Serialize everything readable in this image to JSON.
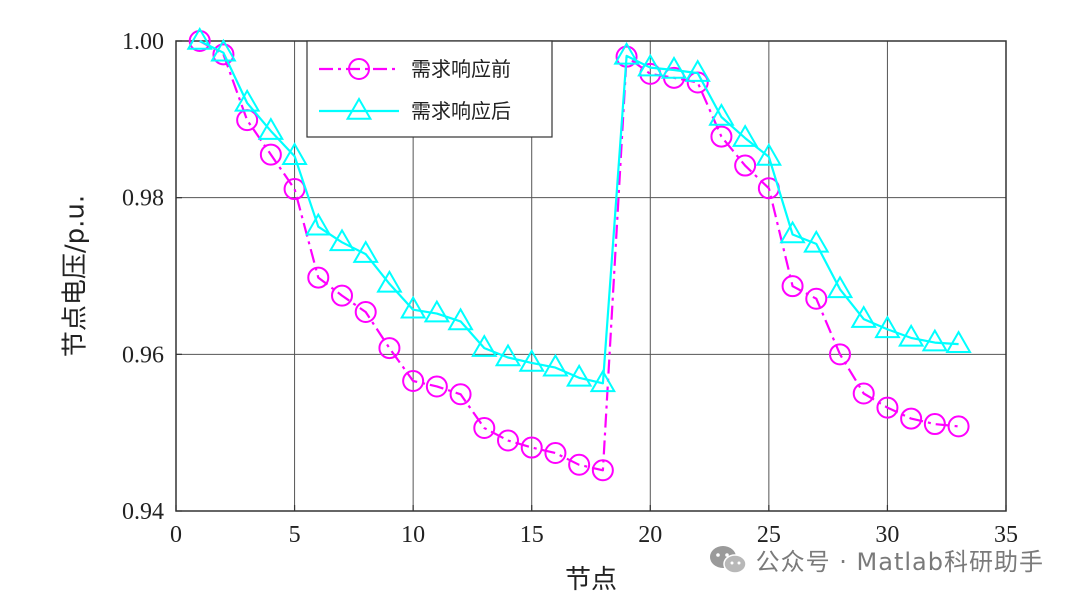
{
  "chart_data": {
    "type": "line",
    "xlabel": "节点",
    "ylabel": "节点电压/p.u.",
    "xlim": [
      0,
      35
    ],
    "ylim": [
      0.94,
      1.0
    ],
    "xticks": [
      0,
      5,
      10,
      15,
      20,
      25,
      30,
      35
    ],
    "yticks": [
      0.94,
      0.96,
      0.98,
      1.0
    ],
    "ytick_labels": [
      "0.94",
      "0.96",
      "0.98",
      "1.00"
    ],
    "grid": true,
    "legend_position": "top-left",
    "x": [
      1,
      2,
      3,
      4,
      5,
      6,
      7,
      8,
      9,
      10,
      11,
      12,
      13,
      14,
      15,
      16,
      17,
      18,
      19,
      20,
      21,
      22,
      23,
      24,
      25,
      26,
      27,
      28,
      29,
      30,
      31,
      32,
      33
    ],
    "series": [
      {
        "name": "需求响应前",
        "color": "#ff00ff",
        "line_style": "dash-dot",
        "marker": "circle",
        "values": [
          1.0,
          0.9983,
          0.9899,
          0.9855,
          0.9811,
          0.9698,
          0.9675,
          0.9654,
          0.9608,
          0.9566,
          0.9559,
          0.9549,
          0.9506,
          0.949,
          0.9481,
          0.9474,
          0.9459,
          0.9452,
          0.998,
          0.9958,
          0.9953,
          0.9947,
          0.9878,
          0.9841,
          0.9812,
          0.9687,
          0.9671,
          0.96,
          0.955,
          0.9532,
          0.9518,
          0.9511,
          0.9508
        ]
      },
      {
        "name": "需求响应后",
        "color": "#00ffff",
        "line_style": "solid",
        "marker": "triangle",
        "values": [
          1.0,
          0.9985,
          0.9921,
          0.9885,
          0.9853,
          0.9763,
          0.9743,
          0.9728,
          0.969,
          0.9657,
          0.9652,
          0.9642,
          0.9608,
          0.9596,
          0.9589,
          0.9583,
          0.957,
          0.9563,
          0.9981,
          0.9966,
          0.9963,
          0.9959,
          0.9903,
          0.9876,
          0.9852,
          0.9753,
          0.9741,
          0.9683,
          0.9645,
          0.9632,
          0.9621,
          0.9615,
          0.9613
        ]
      }
    ]
  },
  "watermark": {
    "text": "公众号 · Matlab科研助手",
    "icon": "wechat-icon"
  }
}
